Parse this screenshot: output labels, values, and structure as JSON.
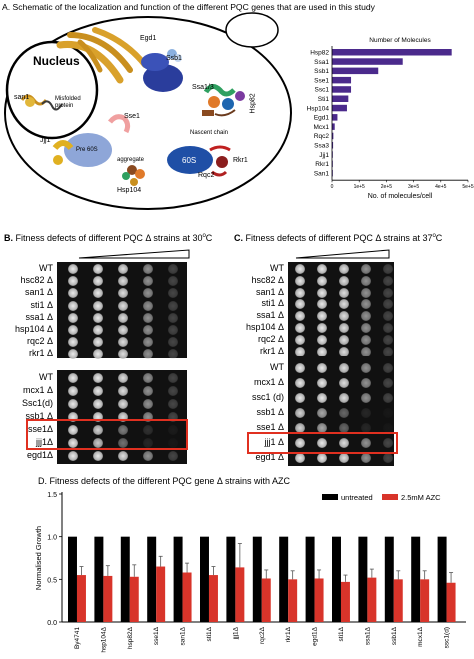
{
  "panelA": {
    "title": "A. Schematic of the localization and function of the different PQC genes that are used in this study",
    "labels": {
      "nucleus": "Nucleus",
      "san1": "san1",
      "misfolded": "Misfolded protein",
      "egd1": "Egd1",
      "ssb1": "Ssb1",
      "ssa13": "Ssa1/3",
      "hsp82": "Hsp82",
      "sse1": "Sse1",
      "jjj1": "Jjj1",
      "pre60s": "Pre 60S",
      "aggregate": "aggregate",
      "hsp104": "Hsp104",
      "nascent": "Nascent chain",
      "s60": "60S",
      "rkr1": "Rkr1",
      "rqc2": "Rqc2"
    }
  },
  "panelA_chart": {
    "chart_data": {
      "type": "bar",
      "orientation": "horizontal",
      "title": "Number of Molecules",
      "xlabel": "No. of molecules/cell",
      "categories": [
        "Hsp82",
        "Ssa1",
        "Ssb1",
        "Sse1",
        "Ssc1",
        "Sti1",
        "Hsp104",
        "Egd1",
        "Mcx1",
        "Rqc2",
        "Ssa3",
        "Jjj1",
        "Rkr1",
        "San1"
      ],
      "values": [
        440000,
        260000,
        170000,
        70000,
        70000,
        60000,
        55000,
        20000,
        10000,
        5000,
        4000,
        2000,
        1000,
        500
      ],
      "xticks": [
        "0",
        "1e+5",
        "2e+5",
        "3e+5",
        "4e+5",
        "5e+5"
      ],
      "xlim": [
        0,
        500000
      ],
      "color": "#4b2a8c"
    }
  },
  "panelB": {
    "title_prefix": "B.",
    "title": "Fitness defects of different PQC Δ strains at 30",
    "title_sup": "o",
    "title_end": "C",
    "top_strains": [
      "WT",
      "hsc82 Δ",
      "san1 Δ",
      "sti1 Δ",
      "ssa1 Δ",
      "hsp104 Δ",
      "rqc2 Δ",
      "rkr1 Δ"
    ],
    "bottom_strains": [
      "WT",
      "mcx1 Δ",
      "Ssc1(d)",
      "ssb1 Δ",
      "sse1Δ",
      "jjj1Δ",
      "egd1Δ"
    ]
  },
  "panelC": {
    "title_prefix": "C.",
    "title": "Fitness defects of different PQC Δ strains at 37",
    "title_sup": "o",
    "title_end": "C",
    "top_strains": [
      "WT",
      "hsc82 Δ",
      "san1 Δ",
      "sti1 Δ",
      "ssa1 Δ",
      "hsp104 Δ",
      "rqc2 Δ",
      "rkr1 Δ"
    ],
    "bottom_strains": [
      "WT",
      "mcx1 Δ",
      "ssc1 (d)",
      "ssb1 Δ",
      "sse1 Δ",
      "jjj1 Δ",
      "egd1 Δ"
    ]
  },
  "panelD": {
    "title": "D. Fitness defects of the different PQC gene Δ strains with AZC",
    "chart_data": {
      "type": "bar",
      "ylabel": "Normalised Growth",
      "ylim": [
        0,
        1.5
      ],
      "yticks": [
        "0.0",
        "0.5",
        "1.0",
        "1.5"
      ],
      "categories": [
        "By4741",
        "hsp104Δ",
        "hsp82Δ",
        "sse1Δ",
        "san1Δ",
        "sti1Δ",
        "jjj1Δ",
        "rqc2Δ",
        "rkr1Δ",
        "egd1Δ",
        "sti1Δ",
        "ssa1Δ",
        "ssb1Δ",
        "mcx1Δ",
        "ssc1(d)"
      ],
      "series": [
        {
          "name": "untreated",
          "color": "#000000",
          "values": [
            1,
            1,
            1,
            1,
            1,
            1,
            1,
            1,
            1,
            1,
            1,
            1,
            1,
            1,
            1
          ],
          "errors": [
            0,
            0,
            0,
            0,
            0,
            0,
            0,
            0,
            0,
            0,
            0,
            0,
            0,
            0,
            0
          ]
        },
        {
          "name": "2.5mM AZC",
          "color": "#d8342a",
          "values": [
            0.55,
            0.54,
            0.53,
            0.65,
            0.58,
            0.55,
            0.64,
            0.51,
            0.5,
            0.51,
            0.47,
            0.52,
            0.5,
            0.5,
            0.46
          ],
          "errors": [
            0.1,
            0.12,
            0.14,
            0.12,
            0.11,
            0.1,
            0.28,
            0.1,
            0.1,
            0.1,
            0.08,
            0.1,
            0.1,
            0.1,
            0.12
          ]
        }
      ]
    }
  }
}
